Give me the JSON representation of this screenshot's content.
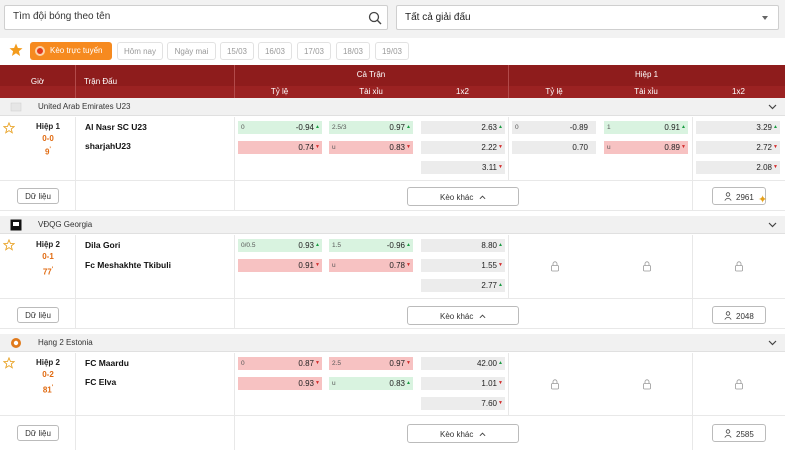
{
  "search": {
    "placeholder": "Tìm đội bóng theo tên"
  },
  "league_filter": {
    "selected": "Tất cả giải đấu"
  },
  "tabs": {
    "live": "Kèo trực tuyến",
    "dates": [
      "Hôm nay",
      "Ngày mai",
      "15/03",
      "16/03",
      "17/03",
      "18/03",
      "19/03"
    ]
  },
  "table_header": {
    "time": "Giờ",
    "match": "Trận Đấu",
    "full_match": "Cả Trận",
    "half1": "Hiệp 1",
    "odds": "Tỷ lệ",
    "over_under": "Tài xỉu",
    "x12": "1x2"
  },
  "buttons": {
    "data": "Dữ liệu",
    "more": "Kèo khác"
  },
  "colors": {
    "accent": "#f68a1f",
    "header": "#8e1c1c",
    "up": "#1a9b42",
    "down": "#d22b2b"
  },
  "leagues": [
    {
      "name": "United Arab Emirates U23",
      "match": {
        "period": "Hiệp 1",
        "score": "0-0",
        "minute": "9",
        "home": "Al Nasr SC U23",
        "away": "sharjahU23",
        "ft_hdp": {
          "line": "0",
          "home": "-0.94",
          "away": "0.74"
        },
        "ft_ou": {
          "line": "2.5/3",
          "over": "0.97",
          "under_label": "u",
          "under": "0.83"
        },
        "ft_1x2": [
          "2.63",
          "2.22",
          "3.11"
        ],
        "h1_hdp": {
          "line": "0",
          "home": "-0.89",
          "away": "0.70"
        },
        "h1_ou": {
          "line": "1",
          "over": "0.91",
          "under_label": "u",
          "under": "0.89"
        },
        "h1_1x2": [
          "3.29",
          "2.72",
          "2.08"
        ],
        "count": "2961"
      }
    },
    {
      "name": "VĐQG Georgia",
      "match": {
        "period": "Hiệp 2",
        "score": "0-1",
        "minute": "77",
        "home": "Dila Gori",
        "away": "Fc Meshakhte Tkibuli",
        "ft_hdp": {
          "line": "0/0.5",
          "home": "0.93",
          "away": "0.91"
        },
        "ft_ou": {
          "line": "1.5",
          "over": "-0.96",
          "under_label": "u",
          "under": "0.78"
        },
        "ft_1x2": [
          "8.80",
          "1.55",
          "2.77"
        ],
        "count": "2048"
      }
    },
    {
      "name": "Hạng 2 Estonia",
      "match": {
        "period": "Hiệp 2",
        "score": "0-2",
        "minute": "81",
        "home": "FC Maardu",
        "away": "FC Elva",
        "ft_hdp": {
          "line": "0",
          "home": "0.87",
          "away": "0.93"
        },
        "ft_ou": {
          "line": "2.5",
          "over": "0.97",
          "under_label": "u",
          "under": "0.83"
        },
        "ft_1x2": [
          "42.00",
          "1.01",
          "7.60"
        ],
        "count": "2585"
      }
    }
  ]
}
